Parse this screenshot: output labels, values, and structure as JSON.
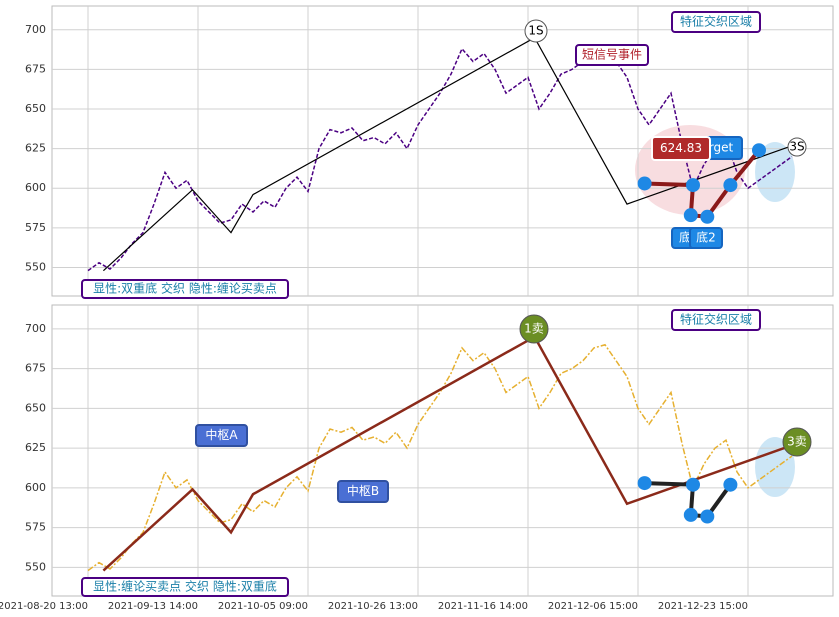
{
  "chart_data": [
    {
      "type": "line",
      "color": "#4b0082",
      "ylim": [
        532,
        715
      ],
      "yticks": [
        550,
        575,
        600,
        625,
        650,
        675,
        700
      ],
      "grid": true,
      "values": [
        548,
        553,
        549,
        556,
        565,
        572,
        590,
        610,
        600,
        605,
        592,
        585,
        578,
        580,
        590,
        585,
        592,
        588,
        600,
        607,
        598,
        625,
        637,
        635,
        638,
        630,
        632,
        628,
        635,
        625,
        640,
        650,
        660,
        672,
        688,
        680,
        685,
        675,
        660,
        665,
        670,
        650,
        660,
        672,
        675,
        680,
        688,
        690,
        680,
        670,
        650,
        640,
        650,
        660,
        628,
        600,
        615,
        625,
        630,
        610,
        600,
        605,
        610,
        615,
        620
      ],
      "zigzag": {
        "color": "#000000",
        "x": [
          1.4,
          9.5,
          13,
          15,
          40.6,
          49,
          64.5
        ],
        "y": [
          548,
          599,
          572,
          596,
          695,
          590,
          628
        ]
      },
      "points": {
        "color": "#1e88e5",
        "x": [
          50.6,
          55,
          54.8,
          56.3,
          58.4,
          61
        ],
        "y": [
          603,
          602,
          583,
          582,
          602,
          624
        ]
      },
      "annotations": [
        "显性:双重底 交织 隐性:缠论买卖点",
        "短信号事件",
        "特征交织区域",
        "1S",
        "3S",
        "rget",
        "624.83",
        "底",
        "底2"
      ]
    },
    {
      "type": "line",
      "color": "#e6b030",
      "ylim": [
        532,
        715
      ],
      "yticks": [
        550,
        575,
        600,
        625,
        650,
        675,
        700
      ],
      "grid": true,
      "categories": [
        "2021-08-20 13:00",
        null,
        null,
        null,
        null,
        null,
        null,
        null,
        null,
        null,
        "2021-09-13 14:00",
        null,
        null,
        null,
        null,
        null,
        null,
        null,
        null,
        null,
        "2021-10-05 09:00",
        null,
        null,
        null,
        null,
        null,
        null,
        null,
        null,
        null,
        "2021-10-26 13:00",
        null,
        null,
        null,
        null,
        null,
        null,
        null,
        null,
        null,
        "2021-11-16 14:00",
        null,
        null,
        null,
        null,
        null,
        null,
        null,
        null,
        null,
        "2021-12-06 15:00",
        null,
        null,
        null,
        null,
        null,
        null,
        null,
        null,
        null,
        "2021-12-23 15:00",
        null,
        null,
        null,
        null
      ],
      "values": [
        548,
        553,
        549,
        556,
        565,
        572,
        590,
        610,
        600,
        605,
        592,
        585,
        578,
        580,
        590,
        585,
        592,
        588,
        600,
        607,
        598,
        625,
        637,
        635,
        638,
        630,
        632,
        628,
        635,
        625,
        640,
        650,
        660,
        672,
        688,
        680,
        685,
        675,
        660,
        665,
        670,
        650,
        660,
        672,
        675,
        680,
        688,
        690,
        680,
        670,
        650,
        640,
        650,
        660,
        628,
        600,
        615,
        625,
        630,
        610,
        600,
        605,
        610,
        615,
        620
      ],
      "zigzag": {
        "color": "#8b2a1a",
        "x": [
          1.4,
          9.5,
          13,
          15,
          40.6,
          49,
          64.5
        ],
        "y": [
          548,
          599,
          572,
          596,
          695,
          590,
          628
        ]
      },
      "points": {
        "color": "#1e88e5",
        "x": [
          50.6,
          55,
          54.8,
          56.3,
          58.4
        ],
        "y": [
          603,
          602,
          583,
          582,
          602
        ]
      },
      "annotations": [
        "显性:缠论买卖点 交织 隐性:双重底",
        "特征交织区域",
        "1卖",
        "3卖",
        "中枢A",
        "中枢B"
      ]
    }
  ]
}
